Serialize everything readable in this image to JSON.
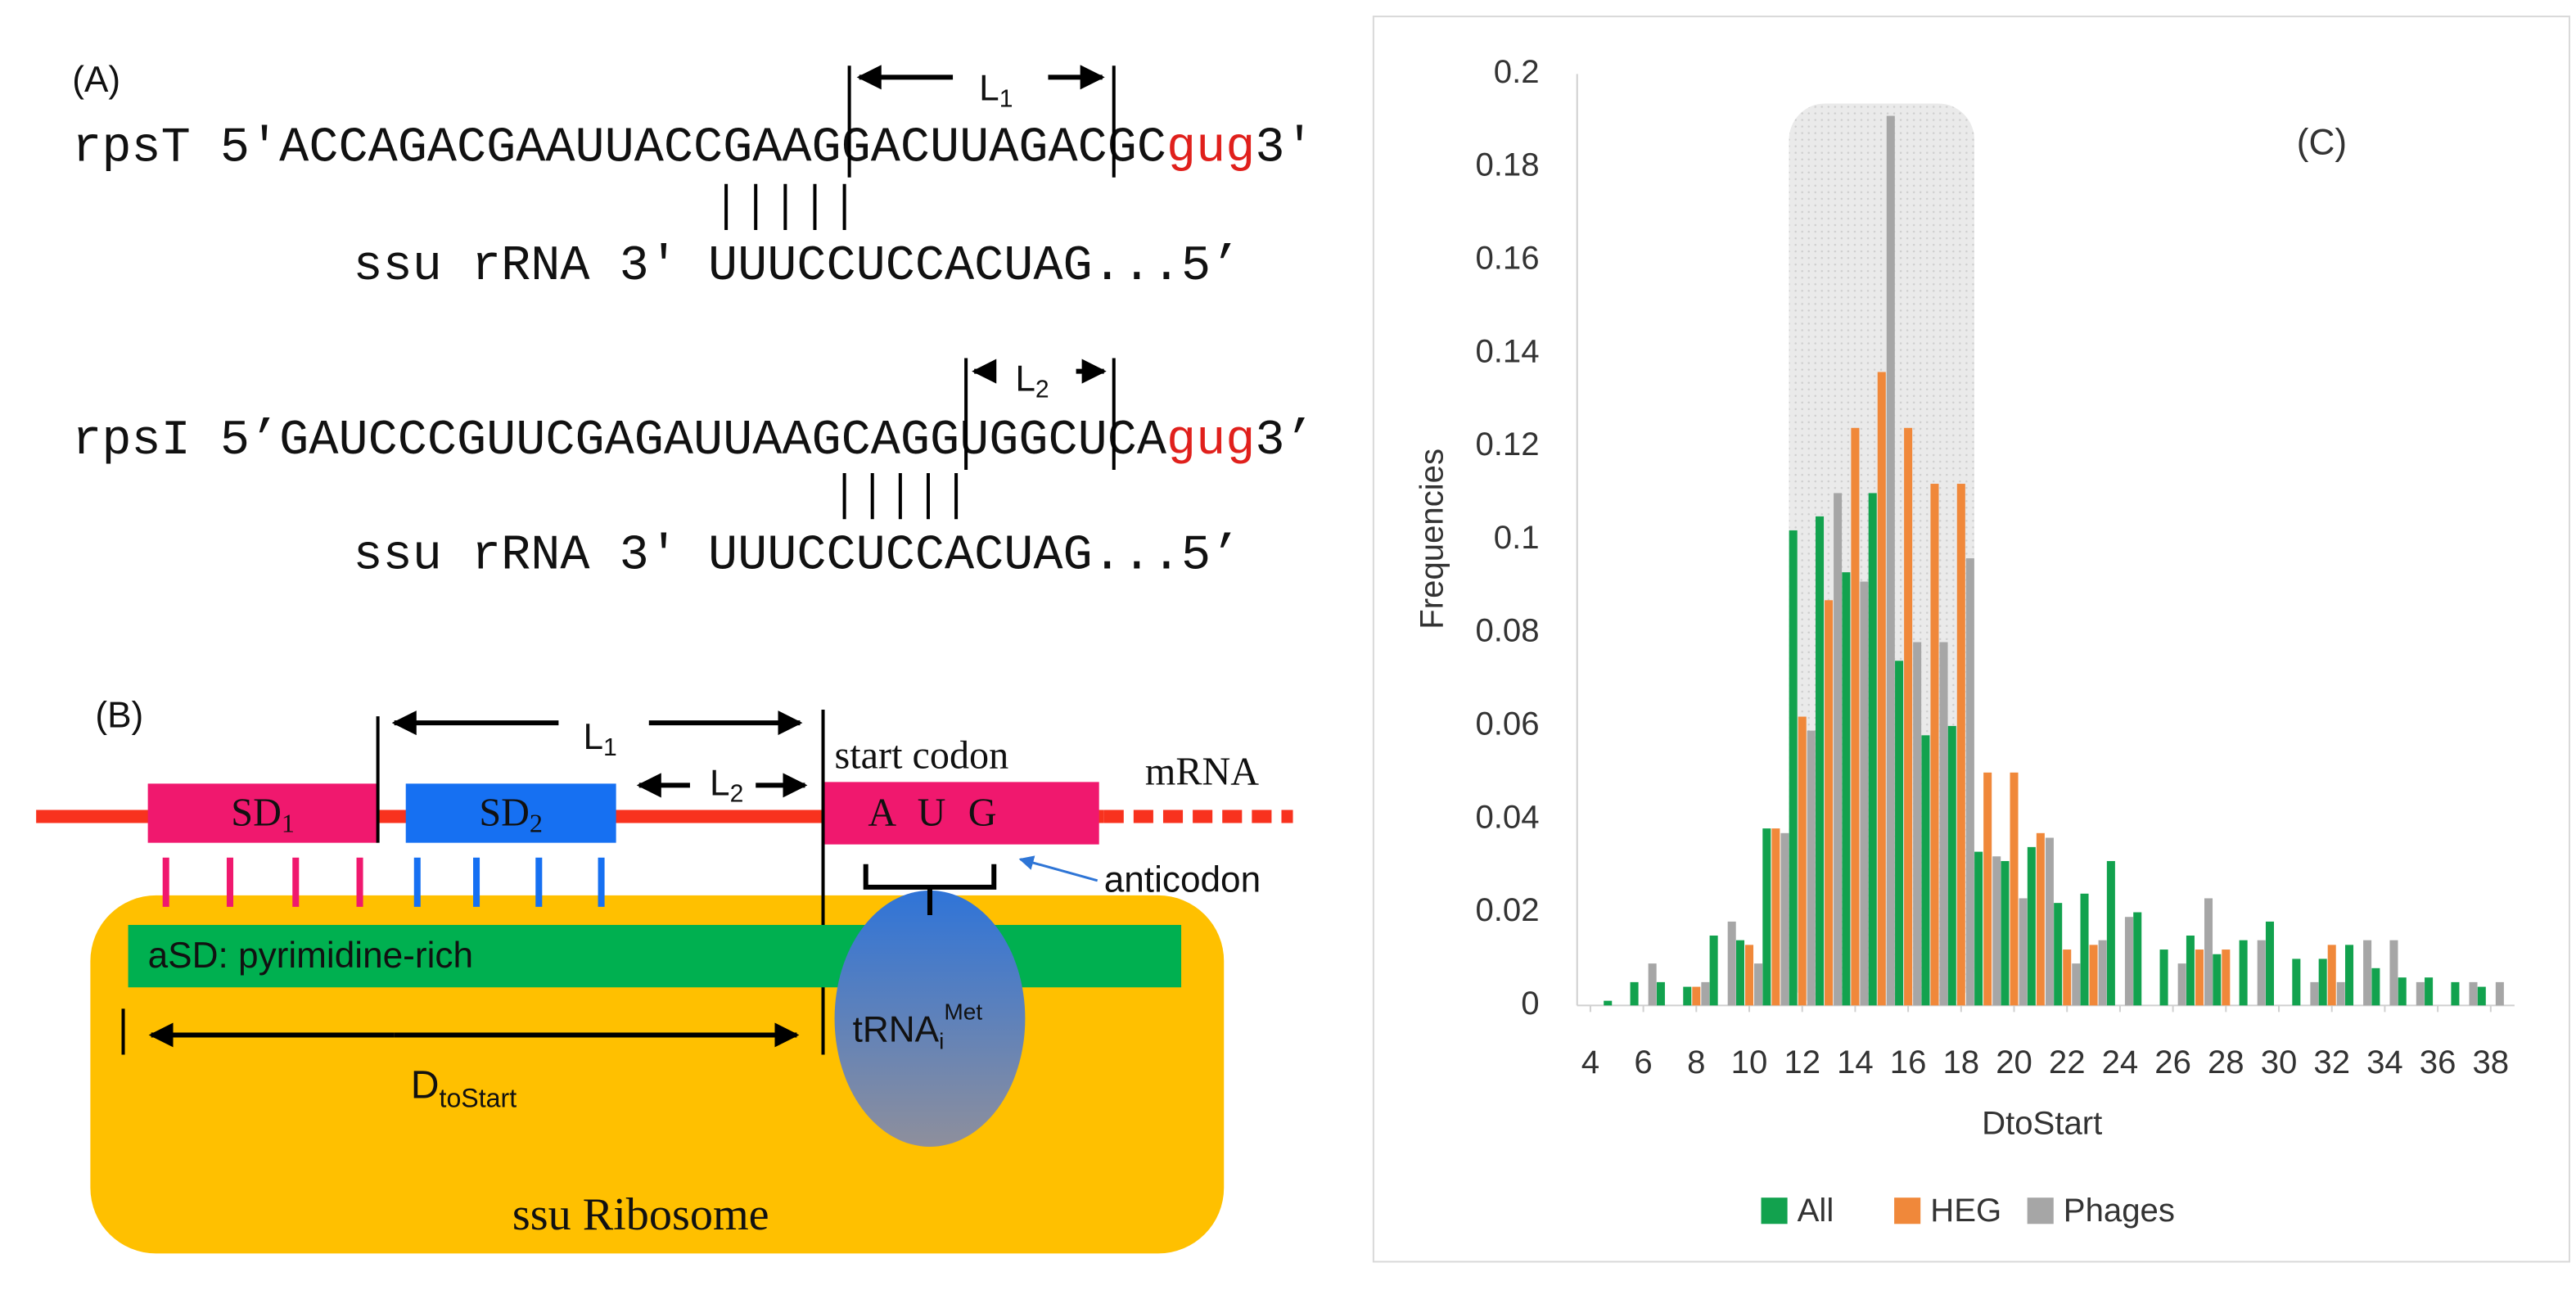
{
  "panel_a": {
    "label": "(A)",
    "row1": {
      "seq": "rpsT 5'ACCAGACGAAUUACCGAAGGACUUAGACGC",
      "codon": "gug",
      "end": "3'"
    },
    "l1": {
      "main": "L",
      "sub": "1"
    },
    "rrna1": "ssu rRNA 3' UUUCCUCCACUAG...5’",
    "row2": {
      "seq": "rpsI 5’GAUCCCGUUCGAGAUUAAGCAGGUGGCUCA",
      "codon": "gug",
      "end": "3’"
    },
    "l2": {
      "main": "L",
      "sub": "2"
    },
    "rrna2": "ssu rRNA 3' UUUCCUCCACUAG...5’"
  },
  "panel_b": {
    "label": "(B)",
    "sd1": {
      "main": "SD",
      "sub": "1"
    },
    "sd2": {
      "main": "SD",
      "sub": "2"
    },
    "l1": {
      "main": "L",
      "sub": "1"
    },
    "l2": {
      "main": "L",
      "sub": "2"
    },
    "start_codon": "start codon",
    "mrna": "mRNA",
    "codon": [
      "A",
      "U",
      "G"
    ],
    "anticodon": "anticodon",
    "asd": "aSD: pyrimidine-rich",
    "trna": {
      "main": "tRNA",
      "sub": "i",
      "sup": "Met"
    },
    "dtostart": {
      "main": "D",
      "sub": "toStart"
    },
    "ribosome": "ssu Ribosome"
  },
  "chart_data": {
    "type": "bar",
    "label": "(C)",
    "x_label": "DtoStart",
    "y_label": "Frequencies",
    "x": [
      4,
      5,
      6,
      7,
      8,
      9,
      10,
      11,
      12,
      13,
      14,
      15,
      16,
      17,
      18,
      19,
      20,
      21,
      22,
      23,
      24,
      25,
      26,
      27,
      28,
      29,
      30,
      31,
      32,
      33,
      34,
      35,
      36,
      37,
      38
    ],
    "xlim": [
      3.5,
      38.9
    ],
    "xticks": [
      4,
      6,
      8,
      10,
      12,
      14,
      16,
      18,
      20,
      22,
      24,
      26,
      28,
      30,
      32,
      34,
      36,
      38
    ],
    "ylim": [
      0,
      0.2
    ],
    "yticks": [
      0,
      0.02,
      0.04,
      0.06,
      0.08,
      0.1,
      0.12,
      0.14,
      0.16,
      0.18,
      0.2
    ],
    "shaded_range": [
      11.5,
      18.5
    ],
    "legend": "bottom",
    "series": [
      {
        "name": "All",
        "color": "#12a24e",
        "values": [
          0,
          0.001,
          0.005,
          0.005,
          0.004,
          0.015,
          0.014,
          0.038,
          0.102,
          0.105,
          0.093,
          0.11,
          0.074,
          0.058,
          0.06,
          0.033,
          0.031,
          0.034,
          0.022,
          0.024,
          0.031,
          0.02,
          0.012,
          0.015,
          0.011,
          0.014,
          0.018,
          0.01,
          0.01,
          0.013,
          0.008,
          0.006,
          0.006,
          0.005,
          0.004
        ]
      },
      {
        "name": "HEG",
        "color": "#f0883a",
        "values": [
          0,
          0,
          0,
          0,
          0.004,
          0,
          0.013,
          0.038,
          0.062,
          0.087,
          0.124,
          0.136,
          0.124,
          0.112,
          0.112,
          0.05,
          0.05,
          0.037,
          0.012,
          0.013,
          0,
          0,
          0,
          0.012,
          0.012,
          0,
          0,
          0,
          0.013,
          0,
          0,
          0,
          0,
          0,
          0
        ]
      },
      {
        "name": "Phages",
        "color": "#a6a6a6",
        "values": [
          0,
          0,
          0.009,
          0,
          0.005,
          0.018,
          0.009,
          0.037,
          0.059,
          0.11,
          0.091,
          0.191,
          0.078,
          0.078,
          0.096,
          0.032,
          0.023,
          0.036,
          0.009,
          0.014,
          0.019,
          0,
          0.009,
          0.023,
          0,
          0.014,
          0,
          0.005,
          0.005,
          0.014,
          0.014,
          0.005,
          0,
          0.005,
          0.005
        ]
      }
    ]
  }
}
